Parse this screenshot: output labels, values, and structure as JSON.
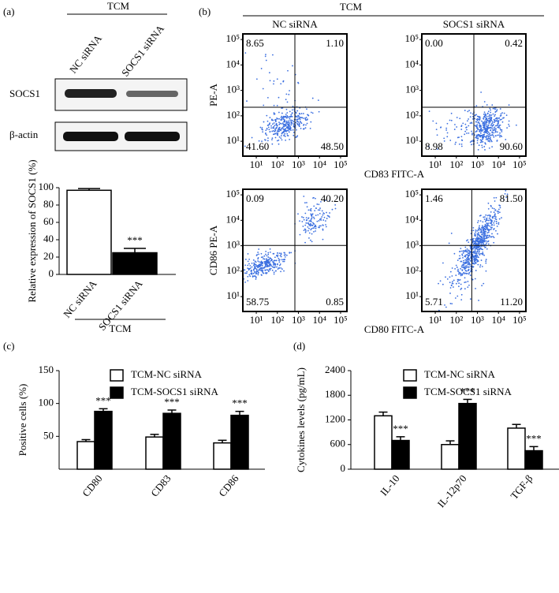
{
  "panel_labels": [
    "(a)",
    "(b)",
    "(c)",
    "(d)"
  ],
  "blot": {
    "title": "TCM",
    "lanes": [
      "NC siRNA",
      "SOCS1 siRNA"
    ],
    "rows": [
      "SOCS1",
      "β-actin"
    ]
  },
  "chart_data": [
    {
      "type": "bar",
      "ylabel": "Relative expression of SOCS1 (%)",
      "categories": [
        "NC siRNA",
        "SOCS1 siRNA"
      ],
      "values": [
        97,
        25
      ],
      "errors": [
        2,
        5
      ],
      "colors": [
        "#ffffff",
        "#000000"
      ],
      "annotations": [
        null,
        "***"
      ],
      "group_label": "TCM",
      "ylim": [
        0,
        100
      ],
      "yticks": [
        0,
        20,
        40,
        60,
        80,
        100
      ]
    },
    {
      "type": "flow",
      "title": "TCM",
      "columns": [
        "NC siRNA",
        "SOCS1 siRNA"
      ],
      "xlabels": [
        "CD83 FITC-A",
        "CD80 FITC-A"
      ],
      "ylabels": [
        "PE-A",
        "CD86 PE-A"
      ],
      "log": true,
      "xlim": [
        2.3,
        200000
      ],
      "ylim": [
        2.6,
        166000
      ],
      "xticks": [
        {
          "value": 10,
          "label": "10¹"
        },
        {
          "value": 100,
          "label": "10²"
        },
        {
          "value": 1000,
          "label": "10³"
        },
        {
          "value": 10000,
          "label": "10⁴"
        },
        {
          "value": 100000,
          "label": "10⁵"
        }
      ],
      "yticks": [
        {
          "value": 10,
          "label": "10¹"
        },
        {
          "value": 100,
          "label": "10²"
        },
        {
          "value": 1000,
          "label": "10³"
        },
        {
          "value": 10000,
          "label": "10⁴"
        },
        {
          "value": 100000,
          "label": "10⁵"
        }
      ],
      "panels": [
        {
          "quadrants": [
            {
              "value": 8.65,
              "label": "8.65"
            },
            {
              "value": 1.1,
              "label": "1.10"
            },
            {
              "value": 41.6,
              "label": "41.60"
            },
            {
              "value": 48.5,
              "label": "48.50"
            }
          ]
        },
        {
          "quadrants": [
            {
              "value": 0,
              "label": "0.00"
            },
            {
              "value": 0.42,
              "label": "0.42"
            },
            {
              "value": 8.98,
              "label": "8.98"
            },
            {
              "value": 90.6,
              "label": "90.60"
            }
          ]
        },
        {
          "quadrants": [
            {
              "value": 0.09,
              "label": "0.09"
            },
            {
              "value": 40.2,
              "label": "40.20"
            },
            {
              "value": 58.75,
              "label": "58.75"
            },
            {
              "value": 0.85,
              "label": "0.85"
            }
          ]
        },
        {
          "quadrants": [
            {
              "value": 1.46,
              "label": "1.46"
            },
            {
              "value": 81.5,
              "label": "81.50"
            },
            {
              "value": 5.71,
              "label": "5.71"
            },
            {
              "value": 11.2,
              "label": "11.20"
            }
          ]
        }
      ]
    },
    {
      "type": "bar",
      "ylabel": "Positive cells (%)",
      "categories": [
        "CD80",
        "CD83",
        "CD86"
      ],
      "series": [
        {
          "name": "TCM-NC siRNA",
          "color": "#ffffff",
          "values": [
            42,
            49,
            40
          ],
          "errors": [
            3,
            4,
            4
          ]
        },
        {
          "name": "TCM-SOCS1 siRNA",
          "color": "#000000",
          "values": [
            88,
            85,
            82
          ],
          "errors": [
            4,
            5,
            6
          ],
          "annotations": [
            "***",
            "***",
            "***"
          ]
        }
      ],
      "ylim": [
        0,
        150
      ],
      "yticks": [
        50,
        100,
        150
      ]
    },
    {
      "type": "bar",
      "ylabel": "Cytokines levels (pg/mL)",
      "categories": [
        "IL-10",
        "IL-12p70",
        "TGF-β"
      ],
      "series": [
        {
          "name": "TCM-NC siRNA",
          "color": "#ffffff",
          "values": [
            1300,
            600,
            1000
          ],
          "errors": [
            90,
            90,
            90
          ]
        },
        {
          "name": "TCM-SOCS1 siRNA",
          "color": "#000000",
          "values": [
            700,
            1600,
            450
          ],
          "errors": [
            90,
            100,
            100
          ],
          "annotations": [
            "***",
            "***",
            "***"
          ]
        }
      ],
      "ylim": [
        0,
        2400
      ],
      "yticks": [
        0,
        600,
        1200,
        1800,
        2400
      ]
    }
  ]
}
